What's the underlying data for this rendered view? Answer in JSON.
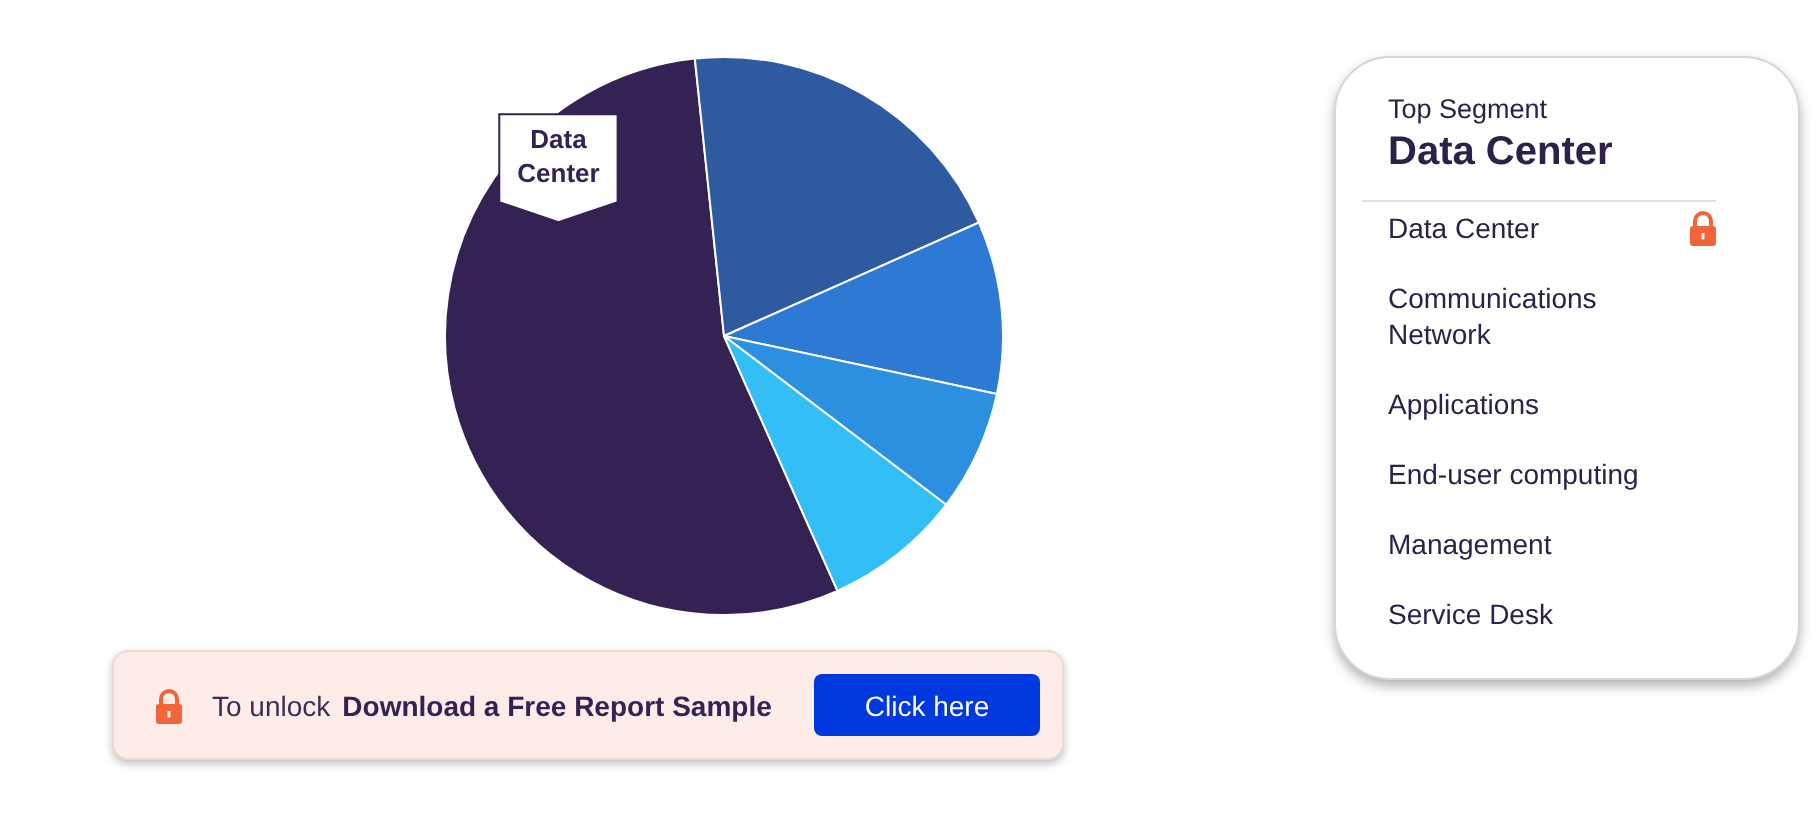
{
  "chart_data": [
    {
      "type": "pie",
      "categories": [
        "Data Center",
        null,
        null,
        null,
        null
      ],
      "values": [
        55,
        20,
        10,
        7,
        8
      ],
      "colors": [
        "#352254",
        "#2e5b9f",
        "#2d7ad4",
        "#2b90e0",
        "#34bef6"
      ],
      "annotations": [
        "To unlock",
        "Download a Free Report Sample",
        "Click here"
      ]
    },
    {
      "type": "other",
      "title": "Top Segment",
      "subtitle": "Data Center",
      "annotations": [
        "Data Center",
        "Communications Network",
        "Applications",
        "End-user computing",
        "Management",
        "Service Desk"
      ]
    }
  ]
}
